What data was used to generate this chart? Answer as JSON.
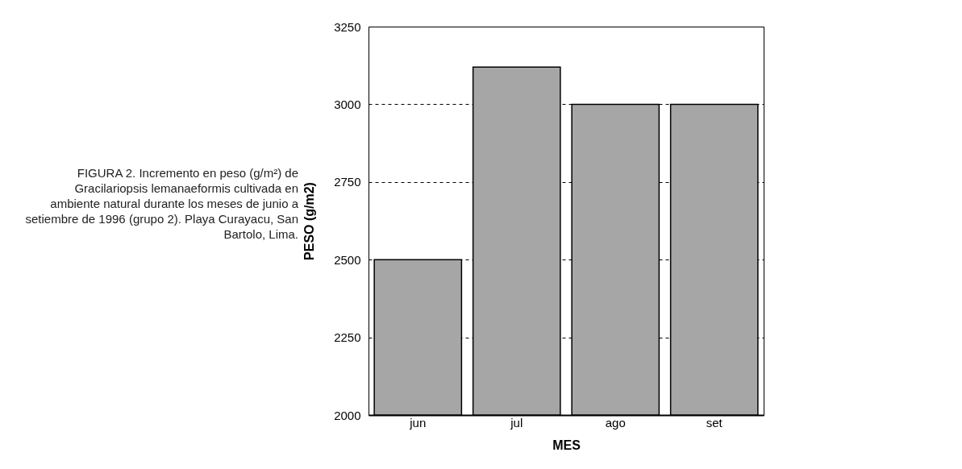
{
  "chart_data": {
    "type": "bar",
    "categories": [
      "jun",
      "jul",
      "ago",
      "set"
    ],
    "values": [
      2500,
      3120,
      3000,
      3000
    ],
    "color": "#a6a6a6",
    "xlabel": "MES",
    "ylabel": "PESO (g/m2)",
    "ylim": [
      2000,
      3250
    ],
    "yticks": [
      2000,
      2250,
      2500,
      2750,
      3000,
      3250
    ],
    "grid": "y",
    "annotations": [
      "FIGURA 2. Incremento en peso (g/m²) de Gracilariopsis lemanaeformis cultivada en ambiente natural durante los meses de junio a setiembre de 1996 (grupo 2). Playa Curayacu, San Bartolo, Lima."
    ]
  }
}
